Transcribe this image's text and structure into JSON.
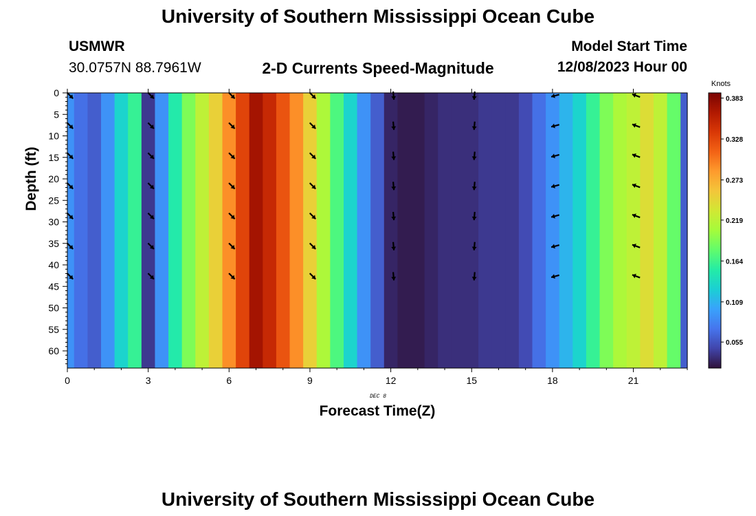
{
  "header": {
    "title_top": "University of Southern Mississippi Ocean Cube",
    "station_name": "USMWR",
    "station_coords": "30.0757N  88.7961W",
    "plot_title": "2-D Currents Speed-Magnitude",
    "model_label": "Model Start Time",
    "model_time": "12/08/2023 Hour 00",
    "title_bottom": "University of Southern Mississippi Ocean Cube"
  },
  "colorbar": {
    "units": "Knots",
    "ticks": [
      "0.383",
      "0.328",
      "0.273",
      "0.219",
      "0.164",
      "0.109",
      "0.055"
    ],
    "ramp": [
      "#30123b",
      "#4145ab",
      "#4675ed",
      "#39a2fc",
      "#1bcfd4",
      "#24eca6",
      "#61fc6c",
      "#a4fc3b",
      "#d1e834",
      "#f3c63a",
      "#fe9b2d",
      "#f36315",
      "#d93806",
      "#b11901",
      "#7a0403"
    ]
  },
  "chart_data": {
    "type": "heatmap",
    "xlabel": "Forecast Time(Z)",
    "ylabel": "Depth (ft)",
    "date_label": "DEC 8",
    "x_tick_labels": [
      "0",
      "3",
      "6",
      "9",
      "12",
      "15",
      "18",
      "21"
    ],
    "y_tick_labels": [
      "0",
      "5",
      "10",
      "15",
      "20",
      "25",
      "30",
      "35",
      "40",
      "45",
      "50",
      "55",
      "60"
    ],
    "xlim": [
      0,
      23
    ],
    "ylim": [
      0,
      64
    ],
    "hours": [
      0,
      0.5,
      1,
      1.5,
      2,
      2.5,
      3,
      3.5,
      4,
      4.5,
      5,
      5.5,
      6,
      6.5,
      7,
      7.5,
      8,
      8.5,
      9,
      9.5,
      10,
      10.5,
      11,
      11.5,
      12,
      12.5,
      13,
      13.5,
      14,
      14.5,
      15,
      15.5,
      16,
      16.5,
      17,
      17.5,
      18,
      18.5,
      19,
      19.5,
      20,
      20.5,
      21,
      21.5,
      22,
      22.5,
      23
    ],
    "speed_knots": [
      0.09,
      0.07,
      0.06,
      0.09,
      0.13,
      0.16,
      0.04,
      0.09,
      0.15,
      0.19,
      0.22,
      0.25,
      0.29,
      0.33,
      0.37,
      0.35,
      0.32,
      0.29,
      0.25,
      0.21,
      0.17,
      0.13,
      0.09,
      0.06,
      0.03,
      0.025,
      0.025,
      0.03,
      0.035,
      0.035,
      0.035,
      0.04,
      0.04,
      0.04,
      0.05,
      0.07,
      0.09,
      0.11,
      0.13,
      0.16,
      0.19,
      0.21,
      0.22,
      0.24,
      0.22,
      0.18,
      0.06
    ],
    "vector_hours": [
      0,
      3,
      6,
      9,
      12,
      15,
      18,
      21
    ],
    "vector_depths_ft": [
      0,
      7,
      14,
      21,
      28,
      35,
      42
    ],
    "vector_direction_deg_from_north": [
      135,
      135,
      135,
      135,
      175,
      185,
      255,
      290
    ]
  }
}
